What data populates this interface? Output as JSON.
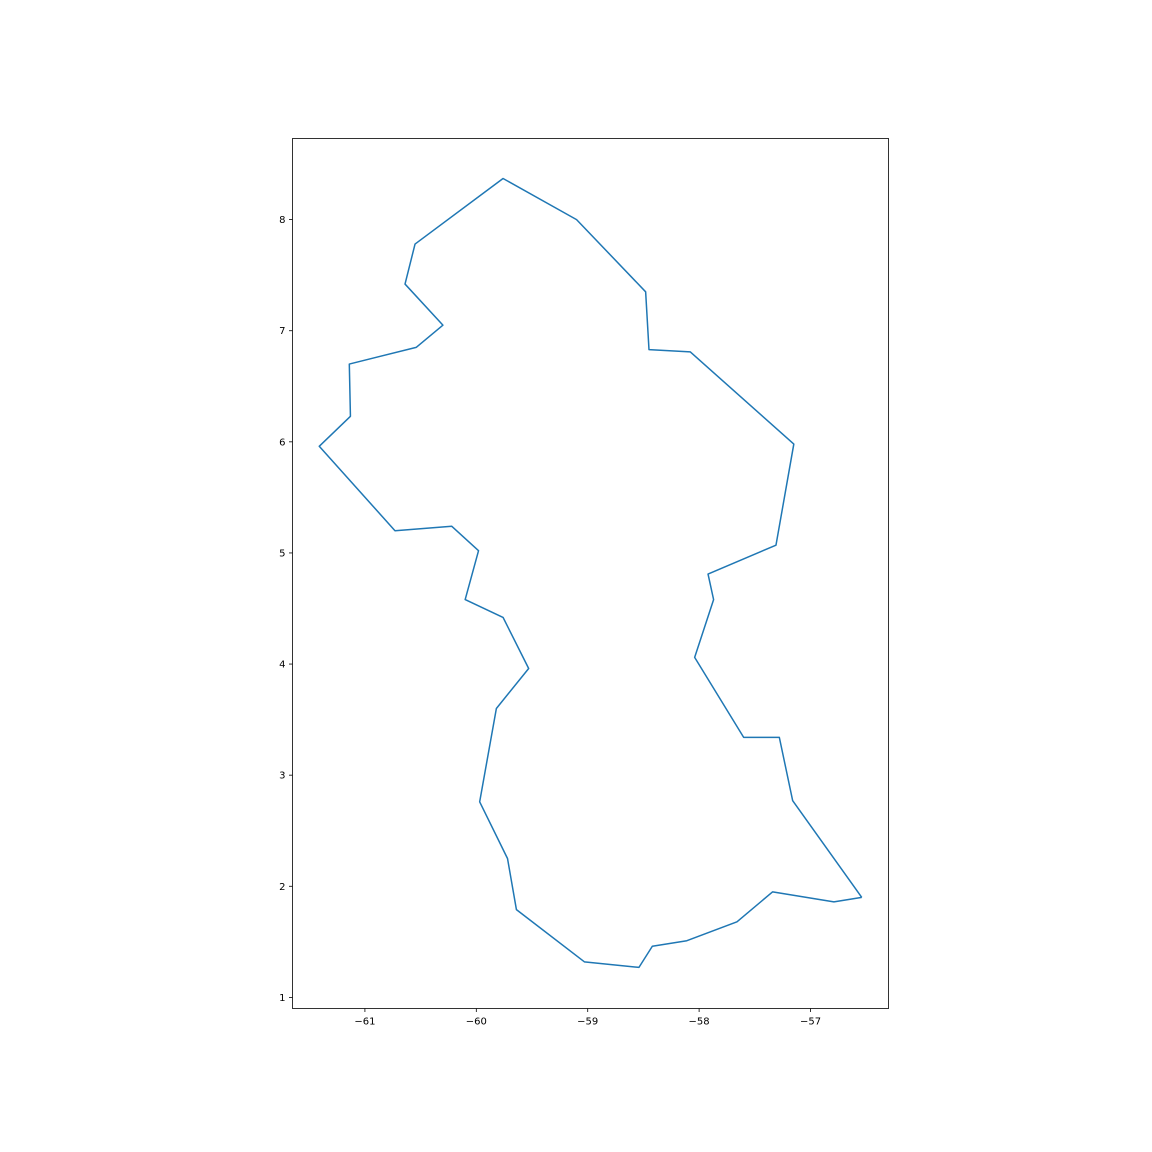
{
  "chart_data": {
    "type": "line",
    "title": "",
    "xlabel": "",
    "ylabel": "",
    "xlim": [
      -61.65,
      -56.3
    ],
    "ylim": [
      0.9,
      8.73
    ],
    "grid": false,
    "legend": "none",
    "line_color": "#1f77b4",
    "xticks": [
      {
        "value": -61,
        "label": "−61"
      },
      {
        "value": -60,
        "label": "−60"
      },
      {
        "value": -59,
        "label": "−59"
      },
      {
        "value": -58,
        "label": "−58"
      },
      {
        "value": -57,
        "label": "−57"
      }
    ],
    "yticks": [
      {
        "value": 1,
        "label": "1"
      },
      {
        "value": 2,
        "label": "2"
      },
      {
        "value": 3,
        "label": "3"
      },
      {
        "value": 4,
        "label": "4"
      },
      {
        "value": 5,
        "label": "5"
      },
      {
        "value": 6,
        "label": "6"
      },
      {
        "value": 7,
        "label": "7"
      },
      {
        "value": 8,
        "label": "8"
      }
    ],
    "series": [
      {
        "x": [
          -56.54,
          -56.79,
          -57.34,
          -57.66,
          -58.11,
          -58.42,
          -58.54,
          -59.03,
          -59.64,
          -59.72,
          -59.97,
          -59.82,
          -59.53,
          -59.76,
          -60.1,
          -59.98,
          -60.22,
          -60.73,
          -61.41,
          -61.13,
          -61.14,
          -60.54,
          -60.3,
          -60.64,
          -60.55,
          -59.76,
          -59.1,
          -58.48,
          -58.45,
          -58.08,
          -57.15,
          -57.31,
          -57.92,
          -57.87,
          -58.04,
          -57.6,
          -57.28,
          -57.16,
          -56.54
        ],
        "y": [
          1.9,
          1.86,
          1.95,
          1.68,
          1.51,
          1.46,
          1.27,
          1.32,
          1.79,
          2.25,
          2.76,
          3.6,
          3.96,
          4.42,
          4.58,
          5.02,
          5.24,
          5.2,
          5.96,
          6.23,
          6.7,
          6.85,
          7.05,
          7.42,
          7.78,
          8.37,
          8.0,
          7.35,
          6.83,
          6.81,
          5.98,
          5.07,
          4.81,
          4.58,
          4.06,
          3.34,
          3.34,
          2.77,
          1.9
        ]
      }
    ]
  }
}
